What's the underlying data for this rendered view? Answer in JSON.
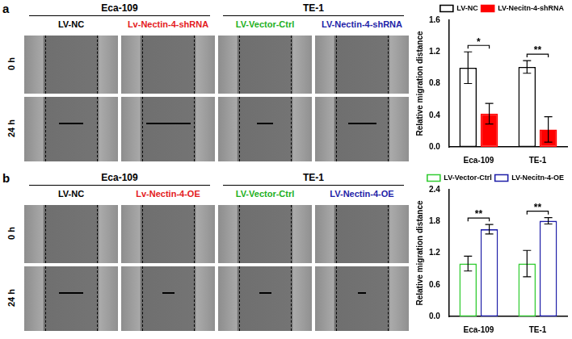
{
  "panels": [
    {
      "label": "a",
      "cell_lines": [
        "Eca-109",
        "TE-1"
      ],
      "columns": [
        {
          "text": "LV-NC",
          "color": "#000000"
        },
        {
          "text": "Lv-Nectin-4-shRNA",
          "color": "#e41a1c"
        },
        {
          "text": "LV-Vector-Ctrl",
          "color": "#22b022"
        },
        {
          "text": "LV-Nectin-4-shRNA",
          "color": "#1f1fa8"
        }
      ],
      "rows": [
        "0 h",
        "24 h"
      ]
    },
    {
      "label": "b",
      "cell_lines": [
        "Eca-109",
        "TE-1"
      ],
      "columns": [
        {
          "text": "LV-NC",
          "color": "#000000"
        },
        {
          "text": "Lv-Nectin-4-OE",
          "color": "#e41a1c"
        },
        {
          "text": "LV-Vector-Ctrl",
          "color": "#22b022"
        },
        {
          "text": "LV-Nectin-4-OE",
          "color": "#1f1fa8"
        }
      ],
      "rows": [
        "0 h",
        "24 h"
      ]
    }
  ],
  "chart_data": [
    {
      "type": "bar",
      "y_label": "Relative migration distance",
      "categories": [
        "Eca-109",
        "TE-1"
      ],
      "series": [
        {
          "name": "LV-NC",
          "color": "#000000",
          "marker": "open",
          "values": [
            1.0,
            1.01
          ],
          "errors": [
            0.2,
            0.08
          ]
        },
        {
          "name": "LV-Necitn-4-shRNA",
          "color": "#ff0000",
          "marker": "filled",
          "values": [
            0.42,
            0.22
          ],
          "errors": [
            0.13,
            0.16
          ]
        }
      ],
      "significance": [
        "*",
        "**"
      ],
      "ylim": [
        0,
        1.6
      ],
      "yticks": [
        {
          "value": 0,
          "label": "0.0"
        },
        {
          "value": 0.4,
          "label": "0.4"
        },
        {
          "value": 0.8,
          "label": "0.8"
        },
        {
          "value": 1.2,
          "label": "1.2"
        },
        {
          "value": 1.6,
          "label": "1.6"
        }
      ],
      "grid": false,
      "legend": "top"
    },
    {
      "type": "bar",
      "y_label": "Relative migration distance",
      "categories": [
        "Eca-109",
        "TE-1"
      ],
      "series": [
        {
          "name": "LV-Vector-Ctrl",
          "color": "#33cc33",
          "marker": "open",
          "values": [
            1.0,
            1.0
          ],
          "errors": [
            0.14,
            0.25
          ]
        },
        {
          "name": "LV-Necitn-4-OE",
          "color": "#1f1fa8",
          "marker": "open",
          "values": [
            1.65,
            1.81
          ],
          "errors": [
            0.09,
            0.06
          ]
        }
      ],
      "significance": [
        "**",
        "**"
      ],
      "ylim": [
        0,
        2.4
      ],
      "yticks": [
        {
          "value": 0,
          "label": "0.0"
        },
        {
          "value": 0.6,
          "label": "0.6"
        },
        {
          "value": 1.2,
          "label": "1.2"
        },
        {
          "value": 1.8,
          "label": "1.8"
        },
        {
          "value": 2.4,
          "label": "2.4"
        }
      ],
      "grid": false,
      "legend": "top"
    }
  ]
}
